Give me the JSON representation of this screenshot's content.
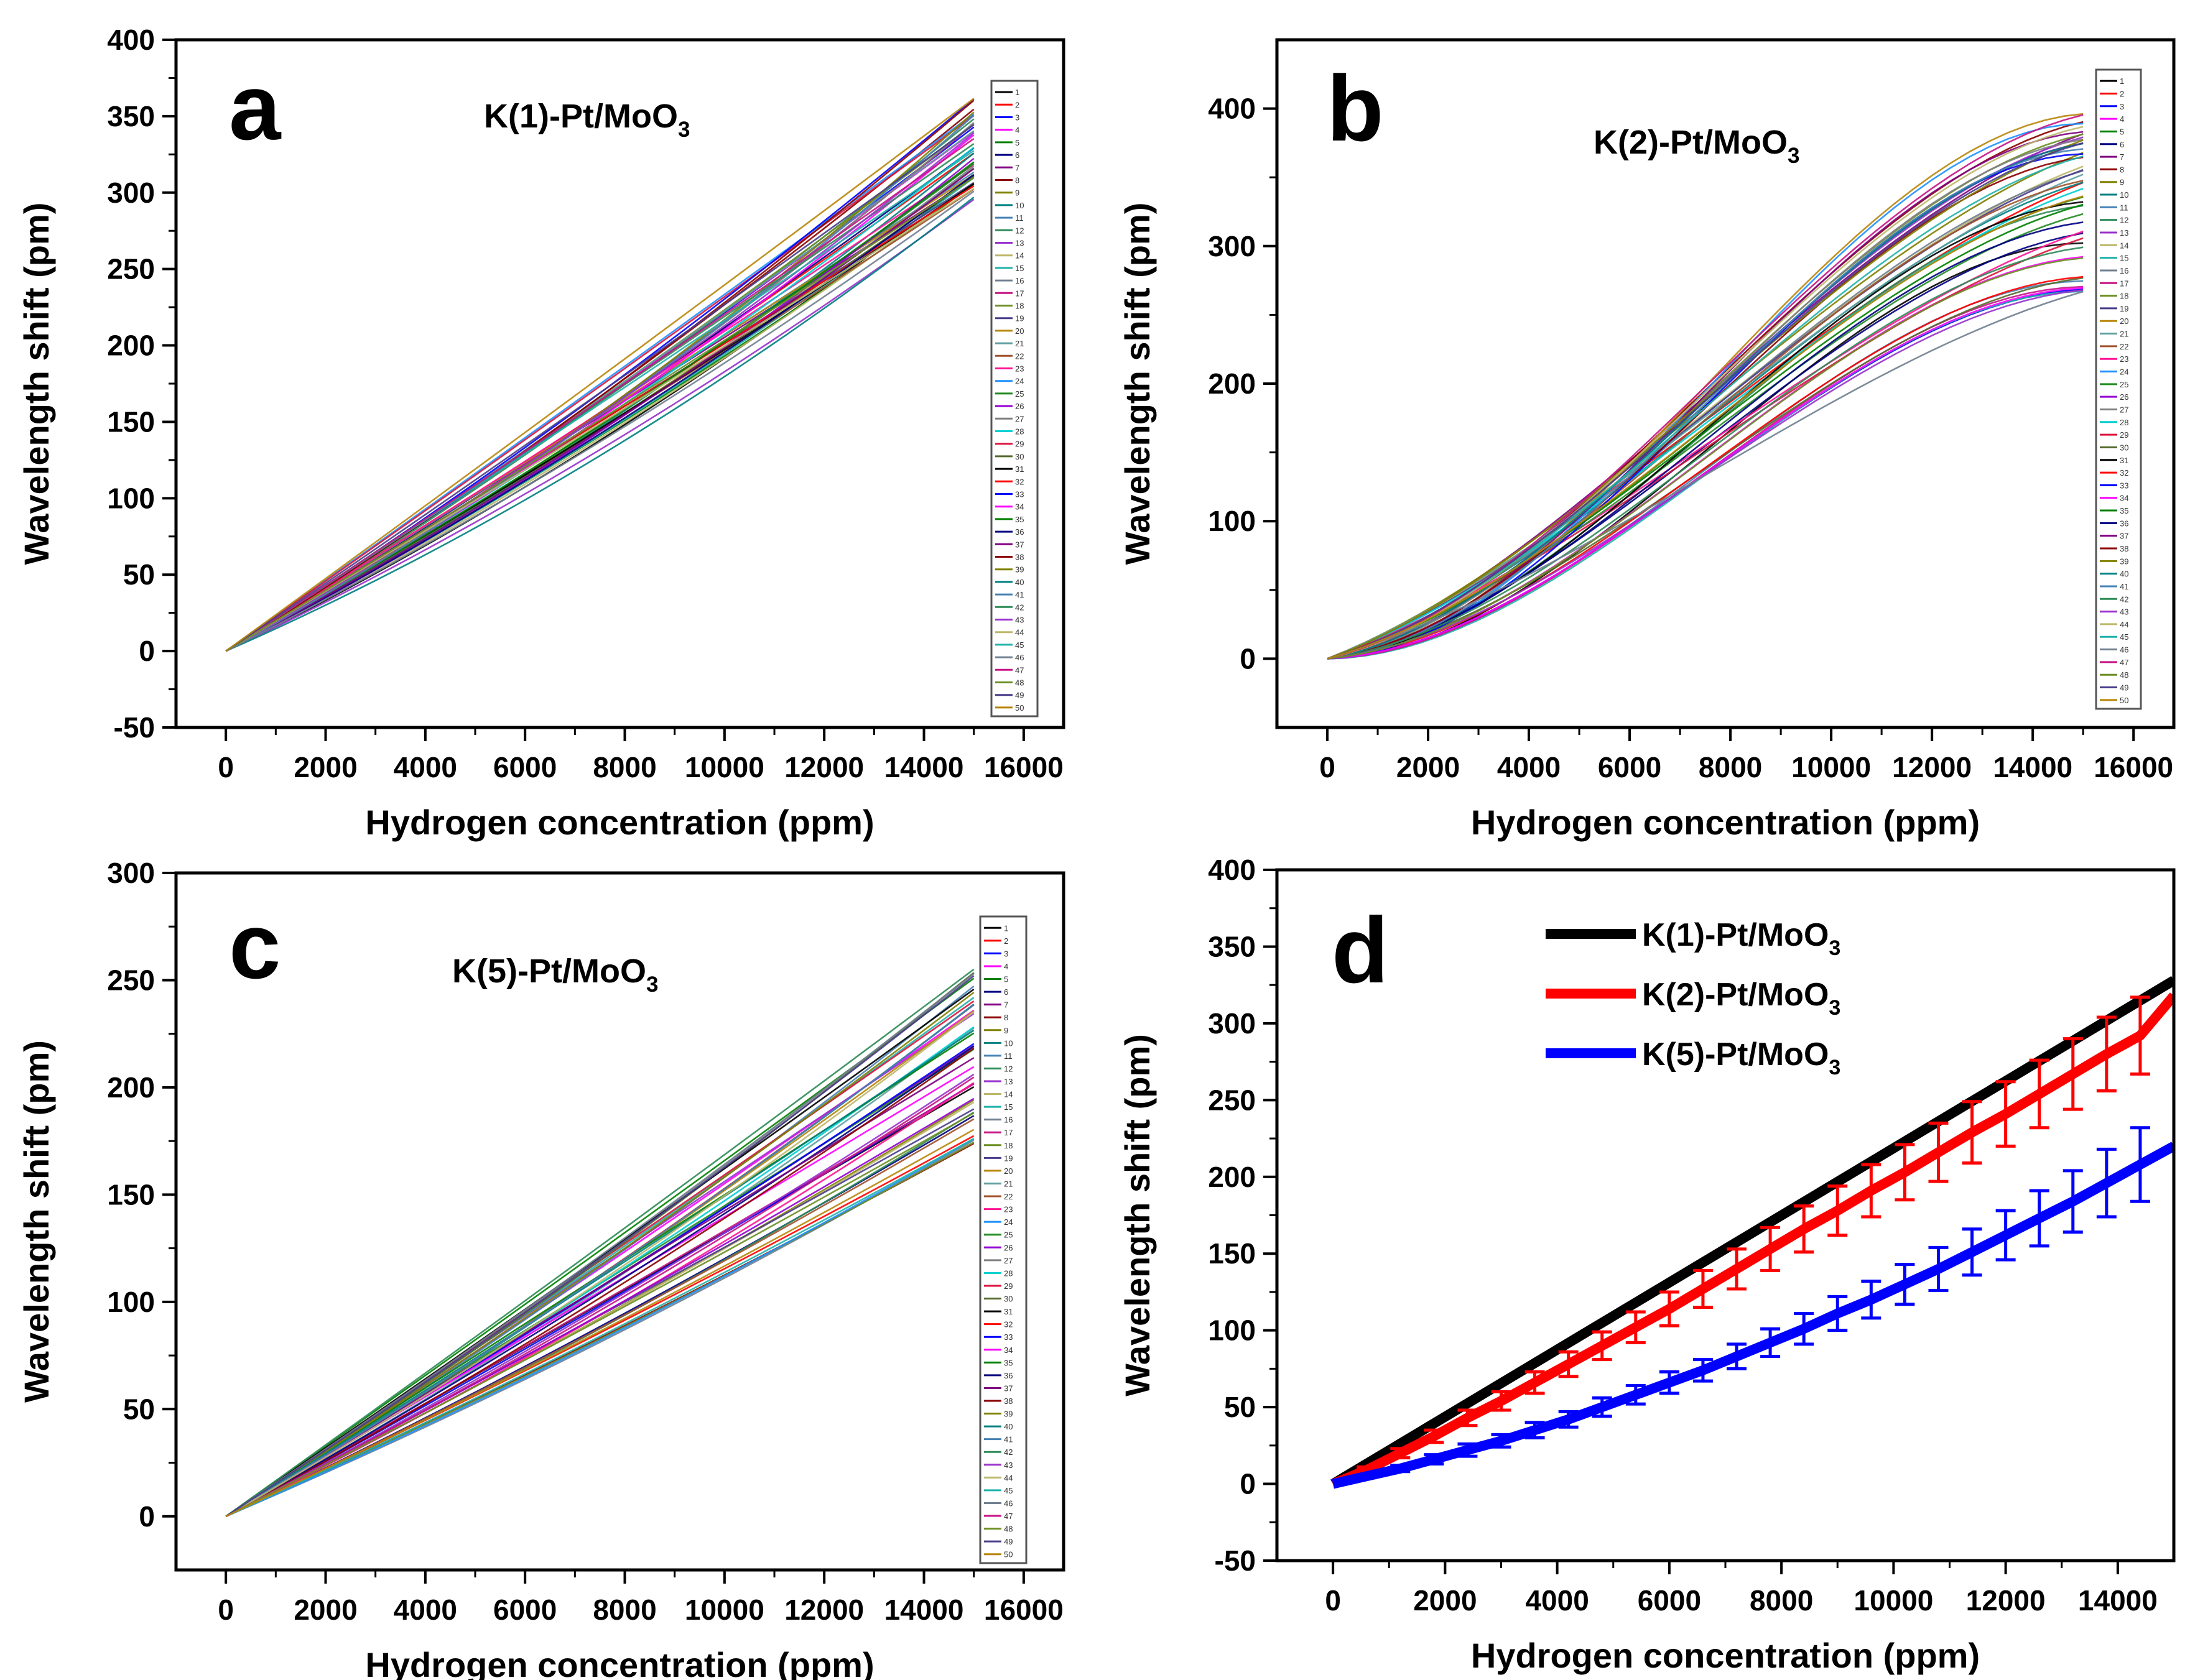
{
  "figure": {
    "background": "#ffffff",
    "axis_color": "#000000"
  },
  "chart_data": [
    {
      "id": "a",
      "type": "line",
      "panel_label": "a",
      "title": "K(1)-Pt/MoO3",
      "title_main": "K(1)-Pt/MoO",
      "title_sub": "3",
      "xlabel": "Hydrogen concentration (ppm)",
      "ylabel": "Wavelength shift (pm)",
      "xlim": [
        -1000,
        16800
      ],
      "ylim": [
        -50,
        400
      ],
      "xticks": [
        0,
        2000,
        4000,
        6000,
        8000,
        10000,
        12000,
        14000,
        16000
      ],
      "yticks": [
        -50,
        0,
        50,
        100,
        150,
        200,
        250,
        300,
        350,
        400
      ],
      "x_end": 15000,
      "series_count": 50,
      "end_value_range": [
        295,
        362
      ],
      "curvature_range": [
        0.0,
        0.28
      ],
      "legend": {
        "position": "right",
        "entries": [
          "1",
          "2",
          "3",
          "4",
          "5",
          "6",
          "7",
          "8",
          "9",
          "10",
          "11",
          "12",
          "13",
          "14",
          "15",
          "16",
          "17",
          "18",
          "19",
          "20",
          "21",
          "22",
          "23",
          "24",
          "25",
          "26",
          "27",
          "28",
          "29",
          "30",
          "31",
          "32",
          "33",
          "34",
          "35",
          "36",
          "37",
          "38",
          "39",
          "40",
          "41",
          "42",
          "43",
          "44",
          "45",
          "46",
          "47",
          "48",
          "49",
          "50"
        ]
      }
    },
    {
      "id": "b",
      "type": "line",
      "panel_label": "b",
      "title": "K(2)-Pt/MoO3",
      "title_main": "K(2)-Pt/MoO",
      "title_sub": "3",
      "xlabel": "Hydrogen concentration (ppm)",
      "ylabel": "Wavelength shift (pm)",
      "xlim": [
        -1000,
        16800
      ],
      "ylim": [
        -50,
        450
      ],
      "xticks": [
        0,
        2000,
        4000,
        6000,
        8000,
        10000,
        12000,
        14000,
        16000
      ],
      "yticks": [
        0,
        100,
        200,
        300,
        400
      ],
      "x_end": 15000,
      "series_count": 50,
      "end_value_range": [
        265,
        397
      ],
      "curvature_range": [
        0.35,
        1.0
      ],
      "legend": {
        "position": "right",
        "entries": [
          "1",
          "2",
          "3",
          "4",
          "5",
          "6",
          "7",
          "8",
          "9",
          "10",
          "11",
          "12",
          "13",
          "14",
          "15",
          "16",
          "17",
          "18",
          "19",
          "20",
          "21",
          "22",
          "23",
          "24",
          "25",
          "26",
          "27",
          "28",
          "29",
          "30",
          "31",
          "32",
          "33",
          "34",
          "35",
          "36",
          "37",
          "38",
          "39",
          "40",
          "41",
          "42",
          "43",
          "44",
          "45",
          "46",
          "47",
          "48",
          "49",
          "50"
        ]
      }
    },
    {
      "id": "c",
      "type": "line",
      "panel_label": "c",
      "title": "K(5)-Pt/MoO3",
      "title_main": "K(5)-Pt/MoO",
      "title_sub": "3",
      "xlabel": "Hydrogen concentration (ppm)",
      "ylabel": "Wavelength shift (pm)",
      "xlim": [
        -1000,
        16800
      ],
      "ylim": [
        -25,
        300
      ],
      "xticks": [
        0,
        2000,
        4000,
        6000,
        8000,
        10000,
        12000,
        14000,
        16000
      ],
      "yticks": [
        0,
        50,
        100,
        150,
        200,
        250,
        300
      ],
      "x_end": 15000,
      "series_count": 50,
      "end_value_range": [
        173,
        258
      ],
      "curvature_range": [
        0.0,
        0.15
      ],
      "legend": {
        "position": "right",
        "entries": [
          "1",
          "2",
          "3",
          "4",
          "5",
          "6",
          "7",
          "8",
          "9",
          "10",
          "11",
          "12",
          "13",
          "14",
          "15",
          "16",
          "17",
          "18",
          "19",
          "20",
          "21",
          "22",
          "23",
          "24",
          "25",
          "26",
          "27",
          "28",
          "29",
          "30",
          "31",
          "32",
          "33",
          "34",
          "35",
          "36",
          "37",
          "38",
          "39",
          "40",
          "41",
          "42",
          "43",
          "44",
          "45",
          "46",
          "47",
          "48",
          "49",
          "50"
        ]
      }
    },
    {
      "id": "d",
      "type": "line",
      "panel_label": "d",
      "xlabel": "Hydrogen concentration (ppm)",
      "ylabel": "Wavelength shift (pm)",
      "xlim": [
        -1000,
        15000
      ],
      "ylim": [
        -50,
        400
      ],
      "xticks": [
        0,
        2000,
        4000,
        6000,
        8000,
        10000,
        12000,
        14000
      ],
      "yticks": [
        -50,
        0,
        50,
        100,
        150,
        200,
        250,
        300,
        350,
        400
      ],
      "legend": {
        "position": "top-left"
      },
      "series": [
        {
          "name": "K(1)-Pt/MoO3",
          "name_main": "K(1)-Pt/MoO",
          "name_sub": "3",
          "color": "#000000",
          "x": [
            0,
            15000
          ],
          "y": [
            0,
            328
          ]
        },
        {
          "name": "K(2)-Pt/MoO3",
          "name_main": "K(2)-Pt/MoO",
          "name_sub": "3",
          "color": "#ff0000",
          "x": [
            0,
            600,
            1200,
            1800,
            2400,
            3000,
            3600,
            4200,
            4800,
            5400,
            6000,
            6600,
            7200,
            7800,
            8400,
            9000,
            9600,
            10200,
            10800,
            11400,
            12000,
            12600,
            13200,
            13800,
            14400,
            15000
          ],
          "y": [
            0,
            9,
            20,
            31,
            43,
            54,
            66,
            78,
            90,
            102,
            114,
            127,
            140,
            153,
            166,
            178,
            191,
            203,
            216,
            229,
            241,
            254,
            267,
            280,
            292,
            318
          ],
          "error": [
            0,
            2,
            3,
            4,
            5,
            6,
            7,
            8,
            9,
            10,
            11,
            12,
            13,
            14,
            15,
            16,
            17,
            18,
            19,
            20,
            21,
            22,
            23,
            24,
            25,
            0
          ]
        },
        {
          "name": "K(5)-Pt/MoO3",
          "name_main": "K(5)-Pt/MoO",
          "name_sub": "3",
          "color": "#0000ff",
          "x": [
            0,
            600,
            1200,
            1800,
            2400,
            3000,
            3600,
            4200,
            4800,
            5400,
            6000,
            6600,
            7200,
            7800,
            8400,
            9000,
            9600,
            10200,
            10800,
            11400,
            12000,
            12600,
            13200,
            13800,
            14400,
            15000
          ],
          "y": [
            0,
            5,
            10,
            16,
            22,
            28,
            35,
            42,
            50,
            58,
            66,
            74,
            83,
            92,
            101,
            111,
            120,
            130,
            140,
            151,
            162,
            173,
            184,
            196,
            208,
            220
          ],
          "error": [
            0,
            1,
            2,
            3,
            4,
            4,
            5,
            5,
            6,
            6,
            7,
            7,
            8,
            9,
            10,
            11,
            12,
            13,
            14,
            15,
            16,
            18,
            20,
            22,
            24,
            0
          ]
        }
      ]
    }
  ]
}
